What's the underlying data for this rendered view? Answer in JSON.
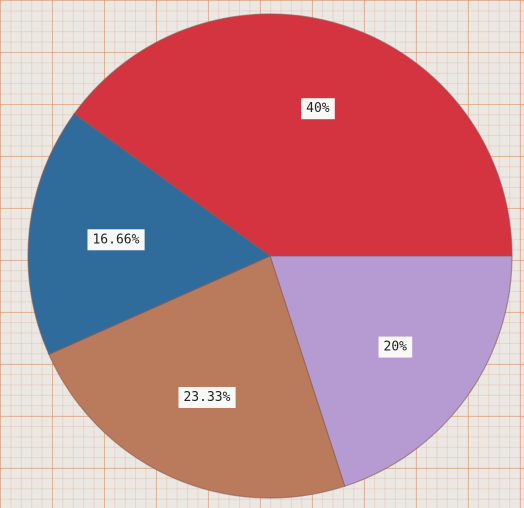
{
  "chart_data": {
    "type": "pie",
    "values": [
      40,
      20,
      23.33,
      16.66
    ],
    "value_labels": [
      "40%",
      "20%",
      "23.33%",
      "16.66%"
    ],
    "colors": [
      "#d3343f",
      "#b59bd1",
      "#b97b5b",
      "#2f6c9c"
    ]
  }
}
